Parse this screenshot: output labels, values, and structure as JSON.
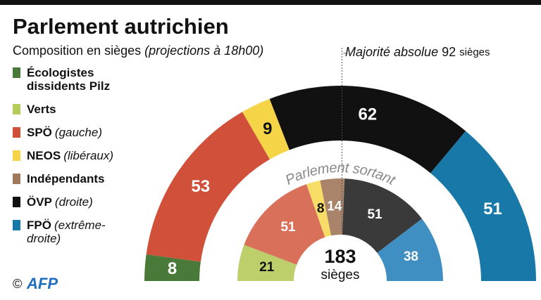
{
  "chart_data": {
    "type": "half-donut",
    "title": "Parlement autrichien",
    "subtitle": "Composition en sièges",
    "subtitle_note": "(projections à 18h00)",
    "categories": [
      "Écologistes dissidents Pilz",
      "Verts",
      "SPÖ",
      "NEOS",
      "Indépendants",
      "ÖVP",
      "FPÖ"
    ],
    "category_notes": [
      null,
      null,
      "(gauche)",
      "(libéraux)",
      null,
      "(droite)",
      "(extrême-droite)"
    ],
    "colors": [
      "#4a7a3a",
      "#b5cc5a",
      "#d0503a",
      "#f5d547",
      "#a0785a",
      "#111111",
      "#1878a8"
    ],
    "series": [
      {
        "values": [
          8,
          null,
          53,
          9,
          null,
          62,
          51
        ]
      },
      {
        "name": "Parlement sortant",
        "values": [
          null,
          21,
          51,
          8,
          14,
          51,
          38
        ],
        "colors": [
          "#4a7a3a",
          "#bccf6a",
          "#d9705a",
          "#f7dc66",
          "#a9846a",
          "#3a3a3a",
          "#3f8fc2"
        ]
      }
    ],
    "total_value": 183,
    "total_unit": "sièges",
    "majority_label": "Majorité absolue",
    "majority_value": 92,
    "majority_unit": "sièges",
    "credit": "©",
    "source": "AFP"
  }
}
